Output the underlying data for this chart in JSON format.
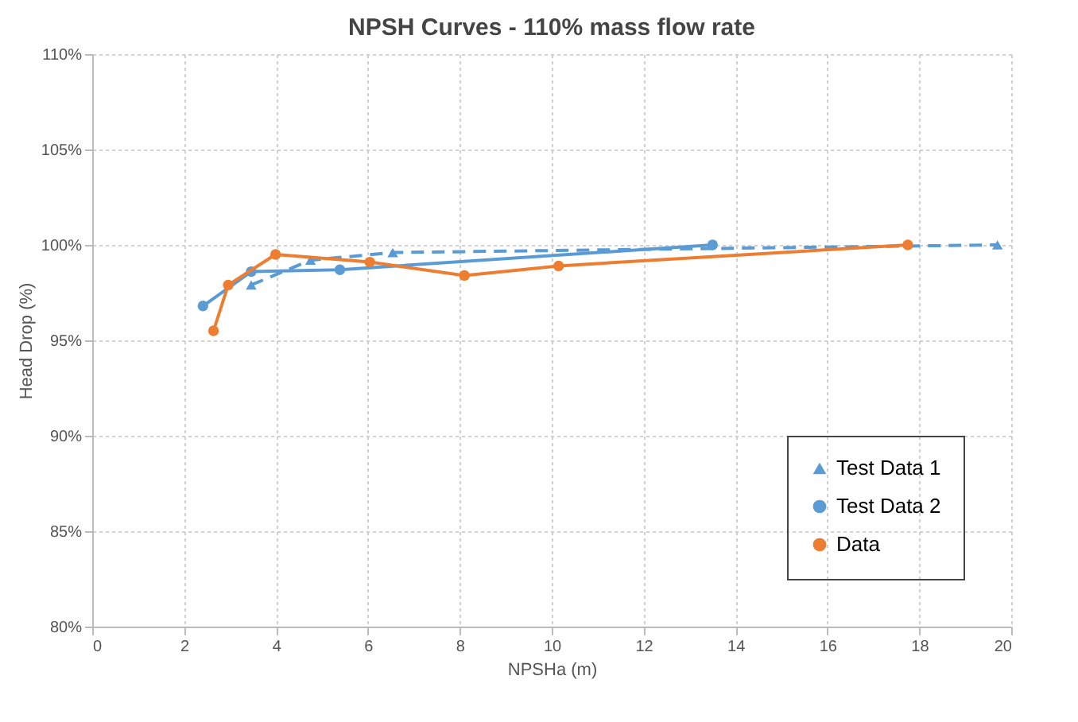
{
  "chart_data": {
    "type": "line",
    "title": "NPSH Curves - 110% mass flow rate",
    "xlabel": "NPSHa (m)",
    "ylabel": "Head Drop (%)",
    "xlim": [
      0,
      20
    ],
    "xticks": [
      0,
      2,
      4,
      6,
      8,
      10,
      12,
      14,
      16,
      18,
      20
    ],
    "ylim": [
      80,
      110
    ],
    "yticks": [
      {
        "value": 80,
        "label": "80%"
      },
      {
        "value": 85,
        "label": "85%"
      },
      {
        "value": 90,
        "label": "90%"
      },
      {
        "value": 95,
        "label": "95%"
      },
      {
        "value": 100,
        "label": "100%"
      },
      {
        "value": 105,
        "label": "105%"
      },
      {
        "value": 110,
        "label": "110%"
      }
    ],
    "grid": true,
    "legend": "bottom right",
    "series": [
      {
        "name": "Test Data 1",
        "color": "#5b9bd5",
        "marker": "triangle",
        "line_style": "dashed",
        "x": [
          3.46,
          4.75,
          6.54,
          19.7
        ],
        "values": [
          97.9,
          99.2,
          99.6,
          100
        ]
      },
      {
        "name": "Test Data 2",
        "color": "#5b9bd5",
        "marker": "circle",
        "line_style": "solid",
        "x": [
          2.41,
          3.46,
          5.39,
          13.5
        ],
        "values": [
          96.8,
          98.6,
          98.7,
          100
        ]
      },
      {
        "name": "Data",
        "color": "#ed7d31",
        "marker": "circle",
        "line_style": "solid",
        "x": [
          2.64,
          2.96,
          3.99,
          6.04,
          8.1,
          10.15,
          17.75
        ],
        "values": [
          95.5,
          97.9,
          99.5,
          99.1,
          98.4,
          98.9,
          100
        ]
      }
    ]
  }
}
